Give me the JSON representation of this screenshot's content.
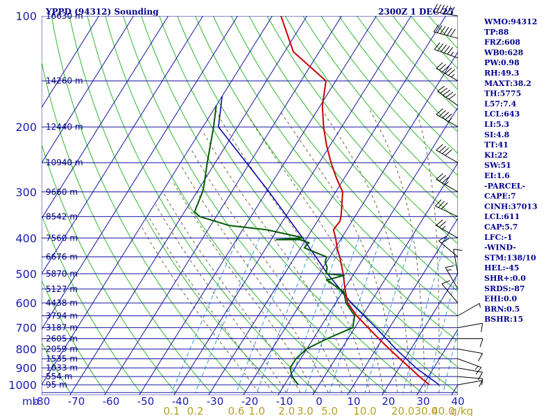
{
  "header": {
    "title": "YPPD (94312) Sounding",
    "time": "2300Z  1 DEC 25"
  },
  "indices": [
    "WMO:94312",
    "TP:88",
    "FRZ:608",
    "WB0:628",
    "PW:0.98",
    "RH:49.3",
    "MAXT:38.2",
    "TH:5775",
    "L57:7.4",
    "LCL:643",
    "LI:5.3",
    "SI:4.8",
    "TT:41",
    "KI:22",
    "SW:51",
    "EI:1.6",
    "-PARCEL-",
    "CAPE:7",
    "CINH:37013",
    "LCL:611",
    "CAP:5.7",
    "LFC:-1",
    "-WIND-",
    "STM:138/10",
    "HEL:-45",
    "SHR+:0.0",
    "SRDS:-87",
    "EHI:0.0",
    "BRN:0.5",
    "BSHR:15"
  ],
  "colors": {
    "isobar": "#1414a0",
    "isotherm": "#1414a0",
    "dry_adiabat": "#2db82d",
    "moist_adiabat": "#6b6b3a",
    "mixing_ratio": "#3399dd",
    "temperature": "#cc0000",
    "dewpoint": "#005a00",
    "parcel": "#0a0aa8",
    "wind": "#000000"
  },
  "chart_data": {
    "type": "skew-t",
    "pressure_unit": "mb",
    "mixing_ratio_unit": "g/kg",
    "pressure_ticks": [
      "100",
      "200",
      "300",
      "400",
      "500",
      "600",
      "700",
      "800",
      "900",
      "1000"
    ],
    "temperature_ticks": [
      "-80",
      "-70",
      "-60",
      "-50",
      "-40",
      "-30",
      "-20",
      "-10",
      "0",
      "10",
      "20",
      "30",
      "40"
    ],
    "mixing_ratio_labels": [
      "0.1",
      "0.2",
      "0.6",
      "1.0",
      "2.0",
      "3.0",
      "5.0",
      "10.0",
      "20.0",
      "30.0",
      "40.0"
    ],
    "height_labels": [
      {
        "label": "16630 m",
        "p": 100
      },
      {
        "label": "14260 m",
        "p": 150
      },
      {
        "label": "12440 m",
        "p": 200
      },
      {
        "label": "10940 m",
        "p": 250
      },
      {
        "label": "9660 m",
        "p": 300
      },
      {
        "label": "8542 m",
        "p": 350
      },
      {
        "label": "7560 m",
        "p": 400
      },
      {
        "label": "6676 m",
        "p": 450
      },
      {
        "label": "5870 m",
        "p": 500
      },
      {
        "label": "5127 m",
        "p": 550
      },
      {
        "label": "4438 m",
        "p": 600
      },
      {
        "label": "3794 m",
        "p": 650
      },
      {
        "label": "3187 m",
        "p": 700
      },
      {
        "label": "2605 m",
        "p": 750
      },
      {
        "label": "2059 m",
        "p": 800
      },
      {
        "label": "1535 m",
        "p": 850
      },
      {
        "label": "1033 m",
        "p": 900
      },
      {
        "label": "554 m",
        "p": 950
      },
      {
        "label": "95 m",
        "p": 1000
      }
    ],
    "temperature_profile": [
      {
        "p": 100,
        "t": -77.5
      },
      {
        "p": 125,
        "t": -67.5
      },
      {
        "p": 150,
        "t": -52.8
      },
      {
        "p": 175,
        "t": -49.4
      },
      {
        "p": 200,
        "t": -45.2
      },
      {
        "p": 225,
        "t": -40.9
      },
      {
        "p": 250,
        "t": -36.6
      },
      {
        "p": 275,
        "t": -32.3
      },
      {
        "p": 300,
        "t": -28.0
      },
      {
        "p": 325,
        "t": -25.9
      },
      {
        "p": 350,
        "t": -24.0
      },
      {
        "p": 360,
        "t": -23.5
      },
      {
        "p": 380,
        "t": -23.8
      },
      {
        "p": 400,
        "t": -21.7
      },
      {
        "p": 430,
        "t": -19.1
      },
      {
        "p": 450,
        "t": -17.1
      },
      {
        "p": 500,
        "t": -13.1
      },
      {
        "p": 550,
        "t": -9.8
      },
      {
        "p": 600,
        "t": -6.5
      },
      {
        "p": 650,
        "t": -1.6
      },
      {
        "p": 700,
        "t": 3.8
      },
      {
        "p": 750,
        "t": 8.9
      },
      {
        "p": 800,
        "t": 13.8
      },
      {
        "p": 850,
        "t": 18.6
      },
      {
        "p": 900,
        "t": 23.2
      },
      {
        "p": 950,
        "t": 27.4
      },
      {
        "p": 1000,
        "t": 31.8
      }
    ],
    "dewpoint_profile": [
      {
        "p": 175,
        "t": -80.0
      },
      {
        "p": 200,
        "t": -76.9
      },
      {
        "p": 250,
        "t": -72.3
      },
      {
        "p": 290,
        "t": -69.0
      },
      {
        "p": 300,
        "t": -68.4
      },
      {
        "p": 340,
        "t": -67.1
      },
      {
        "p": 350,
        "t": -64.7
      },
      {
        "p": 370,
        "t": -54.6
      },
      {
        "p": 380,
        "t": -43.0
      },
      {
        "p": 395,
        "t": -33.8
      },
      {
        "p": 400,
        "t": -31.0
      },
      {
        "p": 404,
        "t": -38.5
      },
      {
        "p": 404,
        "t": -31.8
      },
      {
        "p": 412,
        "t": -28.5
      },
      {
        "p": 425,
        "t": -29.0
      },
      {
        "p": 440,
        "t": -24.2
      },
      {
        "p": 450,
        "t": -20.9
      },
      {
        "p": 465,
        "t": -20.4
      },
      {
        "p": 480,
        "t": -18.9
      },
      {
        "p": 500,
        "t": -18.0
      },
      {
        "p": 505,
        "t": -12.5
      },
      {
        "p": 520,
        "t": -16.7
      },
      {
        "p": 560,
        "t": -9.6
      },
      {
        "p": 600,
        "t": -7.0
      },
      {
        "p": 650,
        "t": -2.2
      },
      {
        "p": 700,
        "t": -0.6
      },
      {
        "p": 750,
        "t": -6.0
      },
      {
        "p": 800,
        "t": -10.1
      },
      {
        "p": 850,
        "t": -11.4
      },
      {
        "p": 900,
        "t": -11.4
      },
      {
        "p": 950,
        "t": -9.3
      },
      {
        "p": 1000,
        "t": -6.0
      }
    ],
    "parcel_profile": [
      {
        "p": 165,
        "t": -80.0
      },
      {
        "p": 200,
        "t": -75.5
      },
      {
        "p": 300,
        "t": -49.2
      },
      {
        "p": 400,
        "t": -31.2
      },
      {
        "p": 500,
        "t": -17.6
      },
      {
        "p": 600,
        "t": -5.5
      },
      {
        "p": 700,
        "t": 6.1
      },
      {
        "p": 800,
        "t": 15.7
      },
      {
        "p": 900,
        "t": 24.9
      },
      {
        "p": 1000,
        "t": 34.6
      }
    ],
    "wind_barbs": [
      {
        "p": 100,
        "dir": 280,
        "spd": 60
      },
      {
        "p": 115,
        "dir": 285,
        "spd": 60
      },
      {
        "p": 130,
        "dir": 290,
        "spd": 55
      },
      {
        "p": 150,
        "dir": 300,
        "spd": 55
      },
      {
        "p": 175,
        "dir": 305,
        "spd": 50
      },
      {
        "p": 200,
        "dir": 300,
        "spd": 45
      },
      {
        "p": 250,
        "dir": 300,
        "spd": 40
      },
      {
        "p": 300,
        "dir": 300,
        "spd": 35
      },
      {
        "p": 350,
        "dir": 295,
        "spd": 30
      },
      {
        "p": 400,
        "dir": 300,
        "spd": 25
      },
      {
        "p": 450,
        "dir": 310,
        "spd": 20
      },
      {
        "p": 500,
        "dir": 350,
        "spd": 10
      },
      {
        "p": 550,
        "dir": 330,
        "spd": 15
      },
      {
        "p": 600,
        "dir": 320,
        "spd": 10
      },
      {
        "p": 650,
        "dir": 60,
        "spd": 5
      },
      {
        "p": 700,
        "dir": 80,
        "spd": 10
      },
      {
        "p": 750,
        "dir": 90,
        "spd": 10
      },
      {
        "p": 800,
        "dir": 100,
        "spd": 10
      },
      {
        "p": 850,
        "dir": 110,
        "spd": 15
      },
      {
        "p": 900,
        "dir": 100,
        "spd": 10
      },
      {
        "p": 950,
        "dir": 95,
        "spd": 10
      },
      {
        "p": 1000,
        "dir": 80,
        "spd": 5
      }
    ]
  }
}
